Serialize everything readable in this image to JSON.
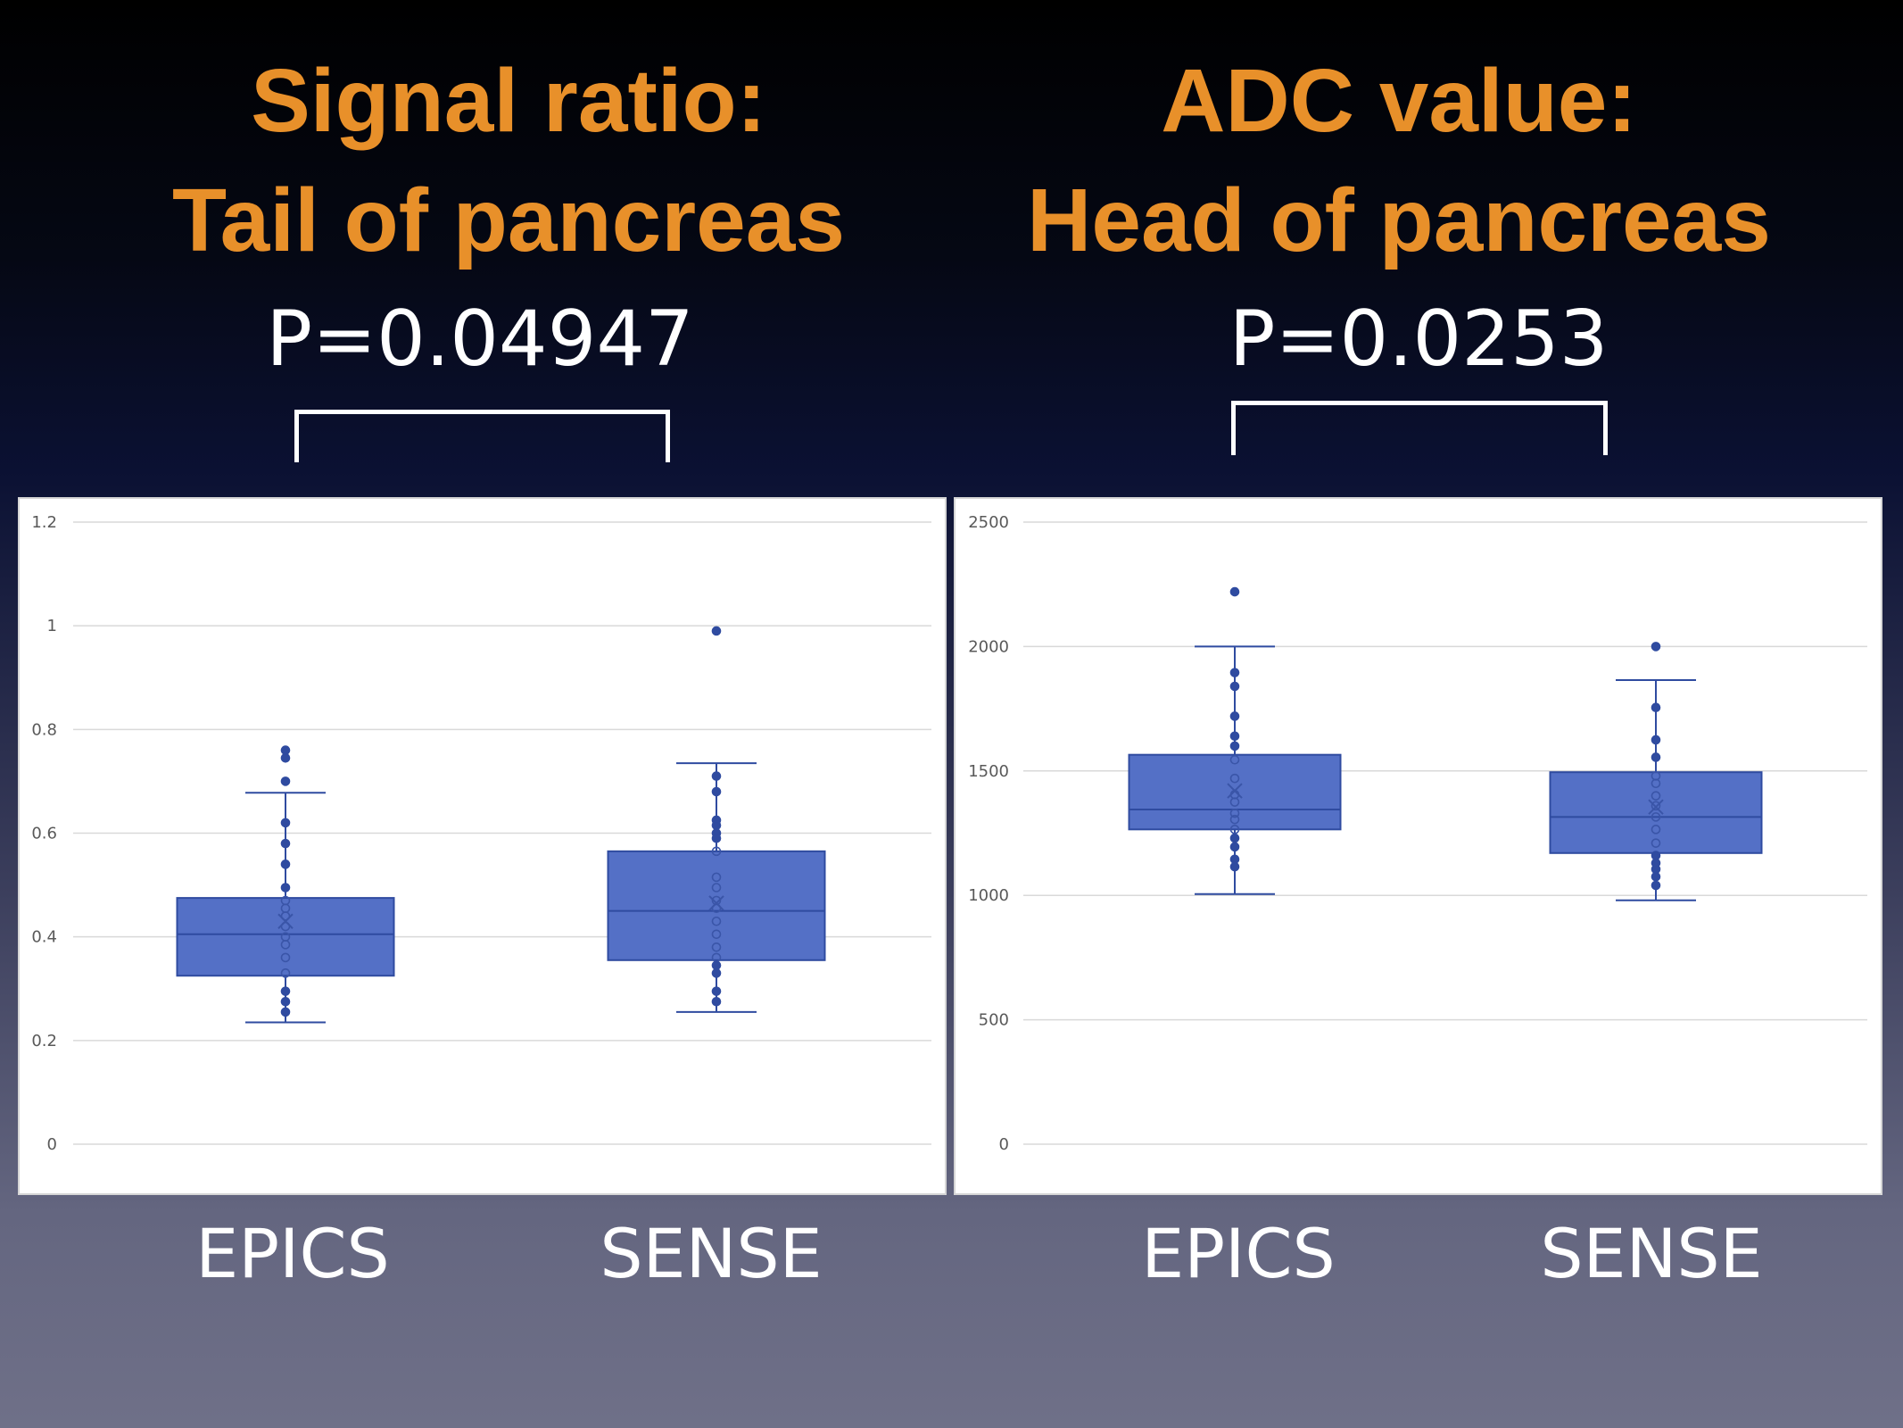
{
  "slide": {
    "left_title": [
      "Signal ratio:",
      "Tail of pancreas"
    ],
    "right_title": [
      "ADC value:",
      "Head of pancreas"
    ],
    "left_pvalue": "P=0.04947",
    "right_pvalue": "P=0.0253"
  },
  "colors": {
    "title": "#e8902a",
    "box_fill": "#5470c6",
    "box_edge": "#2f4ba0",
    "grid": "#d9d9d9"
  },
  "chart_data": [
    {
      "type": "boxplot",
      "title": "Signal ratio: Tail of pancreas",
      "pvalue": "P=0.04947",
      "categories": [
        "EPICS",
        "SENSE"
      ],
      "ylim": [
        0,
        1.2
      ],
      "yticks": [
        "0",
        "0.2",
        "0.4",
        "0.6",
        "0.8",
        "1",
        "1.2"
      ],
      "ytick_values": [
        0,
        0.2,
        0.4,
        0.6,
        0.8,
        1.0,
        1.2
      ],
      "grid": true,
      "boxes": [
        {
          "name": "EPICS",
          "whisker_low": 0.235,
          "q1": 0.325,
          "median": 0.405,
          "q3": 0.475,
          "whisker_high": 0.678,
          "mean": 0.43,
          "points": [
            0.76,
            0.745,
            0.7,
            0.62,
            0.58,
            0.54,
            0.495,
            0.47,
            0.455,
            0.44,
            0.42,
            0.4,
            0.385,
            0.36,
            0.33,
            0.295,
            0.275,
            0.255
          ],
          "outliers": [
            0.76,
            0.745,
            0.7
          ]
        },
        {
          "name": "SENSE",
          "whisker_low": 0.255,
          "q1": 0.355,
          "median": 0.45,
          "q3": 0.565,
          "whisker_high": 0.735,
          "mean": 0.465,
          "points": [
            0.99,
            0.71,
            0.68,
            0.625,
            0.615,
            0.6,
            0.59,
            0.565,
            0.515,
            0.495,
            0.47,
            0.455,
            0.43,
            0.405,
            0.38,
            0.36,
            0.345,
            0.33,
            0.295,
            0.275
          ],
          "outliers": [
            0.99
          ]
        }
      ]
    },
    {
      "type": "boxplot",
      "title": "ADC value: Head of pancreas",
      "pvalue": "P=0.0253",
      "categories": [
        "EPICS",
        "SENSE"
      ],
      "ylim": [
        0,
        2500
      ],
      "yticks": [
        "0",
        "500",
        "1000",
        "1500",
        "2000",
        "2500"
      ],
      "ytick_values": [
        0,
        500,
        1000,
        1500,
        2000,
        2500
      ],
      "grid": true,
      "boxes": [
        {
          "name": "EPICS",
          "whisker_low": 1005,
          "q1": 1265,
          "median": 1345,
          "q3": 1565,
          "whisker_high": 2000,
          "mean": 1420,
          "points": [
            2220,
            1895,
            1840,
            1720,
            1640,
            1600,
            1545,
            1470,
            1405,
            1375,
            1330,
            1305,
            1265,
            1230,
            1195,
            1145,
            1115
          ],
          "outliers": [
            2220
          ]
        },
        {
          "name": "SENSE",
          "whisker_low": 980,
          "q1": 1170,
          "median": 1315,
          "q3": 1495,
          "whisker_high": 1865,
          "mean": 1355,
          "points": [
            2000,
            1755,
            1625,
            1555,
            1480,
            1450,
            1400,
            1360,
            1315,
            1265,
            1210,
            1160,
            1130,
            1105,
            1075,
            1040
          ],
          "outliers": [
            2000
          ]
        }
      ]
    }
  ]
}
